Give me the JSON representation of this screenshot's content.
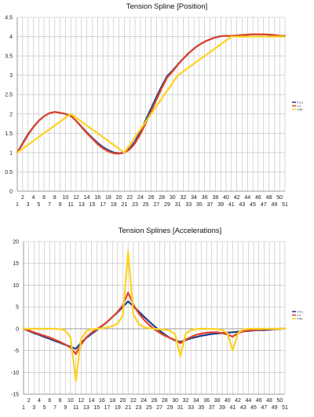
{
  "chart_data": [
    {
      "type": "line",
      "title": "Tension Spline [Position]",
      "xlabel": "",
      "ylabel": "",
      "x": [
        1,
        2,
        3,
        4,
        5,
        6,
        7,
        8,
        9,
        10,
        11,
        12,
        13,
        14,
        15,
        16,
        17,
        18,
        19,
        20,
        21,
        22,
        23,
        24,
        25,
        26,
        27,
        28,
        29,
        30,
        31,
        32,
        33,
        34,
        35,
        36,
        37,
        38,
        39,
        40,
        41,
        42,
        43,
        44,
        45,
        46,
        47,
        48,
        49,
        50,
        51
      ],
      "xlim": [
        1,
        51
      ],
      "ylim": [
        0,
        4.5
      ],
      "yticks": [
        "0",
        "0.5",
        "1",
        "1.5",
        "2",
        "2.5",
        "3",
        "3.5",
        "4",
        "4.5"
      ],
      "xticks_top": [
        "2",
        "4",
        "6",
        "8",
        "10",
        "12",
        "14",
        "16",
        "18",
        "20",
        "22",
        "24",
        "26",
        "28",
        "30",
        "32",
        "34",
        "36",
        "38",
        "40",
        "42",
        "44",
        "46",
        "48",
        "50"
      ],
      "xticks_bottom": [
        "1",
        "3",
        "5",
        "7",
        "9",
        "11",
        "13",
        "15",
        "17",
        "19",
        "21",
        "23",
        "25",
        "27",
        "29",
        "31",
        "33",
        "35",
        "37",
        "39",
        "41",
        "43",
        "45",
        "47",
        "49",
        "51"
      ],
      "grid": true,
      "legend_position": "right",
      "series": [
        {
          "name": "t=0.1",
          "color": "#1f3f8f",
          "values": [
            1.0,
            1.24,
            1.47,
            1.66,
            1.82,
            1.94,
            2.02,
            2.05,
            2.03,
            2.0,
            1.95,
            1.82,
            1.67,
            1.52,
            1.38,
            1.25,
            1.14,
            1.06,
            1.0,
            0.98,
            1.0,
            1.11,
            1.29,
            1.55,
            1.84,
            2.14,
            2.44,
            2.72,
            2.98,
            3.12,
            3.28,
            3.43,
            3.57,
            3.69,
            3.79,
            3.87,
            3.93,
            3.98,
            4.01,
            4.02,
            4.02,
            4.03,
            4.04,
            4.05,
            4.06,
            4.06,
            4.06,
            4.05,
            4.04,
            4.02,
            4.02
          ]
        },
        {
          "name": "t=1",
          "color": "#e0452a",
          "values": [
            1.0,
            1.22,
            1.45,
            1.66,
            1.82,
            1.94,
            2.02,
            2.05,
            2.03,
            2.0,
            1.95,
            1.82,
            1.66,
            1.5,
            1.36,
            1.22,
            1.11,
            1.03,
            0.98,
            0.97,
            1.0,
            1.08,
            1.24,
            1.48,
            1.76,
            2.06,
            2.37,
            2.67,
            2.94,
            3.1,
            3.27,
            3.43,
            3.57,
            3.69,
            3.79,
            3.87,
            3.93,
            3.98,
            4.01,
            4.02,
            4.02,
            4.03,
            4.04,
            4.05,
            4.06,
            4.06,
            4.06,
            4.05,
            4.04,
            4.02,
            4.02
          ]
        },
        {
          "name": "t=50",
          "color": "#ffd21f",
          "values": [
            1.0,
            1.1,
            1.2,
            1.3,
            1.4,
            1.5,
            1.6,
            1.7,
            1.8,
            1.9,
            2.0,
            1.9,
            1.8,
            1.7,
            1.6,
            1.5,
            1.4,
            1.3,
            1.2,
            1.1,
            1.0,
            1.2,
            1.4,
            1.6,
            1.8,
            2.0,
            2.2,
            2.4,
            2.6,
            2.8,
            3.0,
            3.1,
            3.2,
            3.3,
            3.4,
            3.5,
            3.6,
            3.7,
            3.8,
            3.9,
            4.0,
            4.0,
            4.0,
            4.0,
            4.0,
            4.0,
            4.0,
            4.0,
            4.0,
            4.0,
            4.0
          ]
        }
      ]
    },
    {
      "type": "line",
      "title": "Tension Splines [Accelerations]",
      "xlabel": "",
      "ylabel": "",
      "x": [
        1,
        2,
        3,
        4,
        5,
        6,
        7,
        8,
        9,
        10,
        11,
        12,
        13,
        14,
        15,
        16,
        17,
        18,
        19,
        20,
        21,
        22,
        23,
        24,
        25,
        26,
        27,
        28,
        29,
        30,
        31,
        32,
        33,
        34,
        35,
        36,
        37,
        38,
        39,
        40,
        41,
        42,
        43,
        44,
        45,
        46,
        47,
        48,
        49,
        50,
        51
      ],
      "xlim": [
        1,
        51
      ],
      "ylim": [
        -15,
        20
      ],
      "yticks": [
        "-15",
        "-10",
        "-5",
        "0",
        "5",
        "10",
        "15",
        "20"
      ],
      "xticks_top": [
        "2",
        "4",
        "6",
        "8",
        "10",
        "12",
        "14",
        "16",
        "18",
        "20",
        "22",
        "24",
        "26",
        "28",
        "30",
        "32",
        "34",
        "36",
        "38",
        "40",
        "42",
        "44",
        "46",
        "48",
        "50"
      ],
      "xticks_bottom": [
        "1",
        "3",
        "5",
        "7",
        "9",
        "11",
        "13",
        "15",
        "17",
        "19",
        "21",
        "23",
        "25",
        "27",
        "29",
        "31",
        "33",
        "35",
        "37",
        "39",
        "41",
        "43",
        "45",
        "47",
        "49",
        "51"
      ],
      "grid": true,
      "legend_position": "right",
      "series": [
        {
          "name": "t=0.1",
          "color": "#1f3f8f",
          "values": [
            0,
            -0.5,
            -1.0,
            -1.4,
            -1.9,
            -2.3,
            -2.8,
            -3.2,
            -3.7,
            -4.1,
            -4.6,
            -3.2,
            -2.1,
            -1.2,
            -0.3,
            0.6,
            1.6,
            2.7,
            3.8,
            5.0,
            6.3,
            5.1,
            4.0,
            2.8,
            1.7,
            0.6,
            -0.4,
            -1.3,
            -2.1,
            -2.7,
            -3.0,
            -2.6,
            -2.2,
            -1.9,
            -1.6,
            -1.4,
            -1.2,
            -1.1,
            -1.0,
            -0.9,
            -0.8,
            -0.7,
            -0.6,
            -0.5,
            -0.4,
            -0.3,
            -0.3,
            -0.2,
            -0.1,
            -0.05,
            0
          ]
        },
        {
          "name": "t=1",
          "color": "#e0452a",
          "values": [
            0,
            -0.4,
            -0.8,
            -1.2,
            -1.6,
            -2.0,
            -2.5,
            -3.0,
            -3.6,
            -4.3,
            -5.8,
            -3.6,
            -2.0,
            -0.9,
            -0.1,
            0.7,
            1.6,
            2.7,
            3.9,
            5.4,
            8.3,
            5.5,
            3.6,
            2.1,
            0.9,
            -0.1,
            -0.9,
            -1.6,
            -2.1,
            -2.6,
            -3.3,
            -2.5,
            -1.9,
            -1.4,
            -1.1,
            -0.9,
            -0.8,
            -0.8,
            -1.0,
            -1.3,
            -1.8,
            -1.0,
            -0.6,
            -0.4,
            -0.3,
            -0.2,
            -0.1,
            -0.1,
            -0.05,
            0,
            0
          ]
        },
        {
          "name": "t=50",
          "color": "#ffd21f",
          "values": [
            0,
            0,
            0,
            0,
            0,
            0,
            0,
            -0.1,
            -0.4,
            -2.0,
            -12.0,
            -2.3,
            -0.5,
            -0.1,
            0,
            0.1,
            0.3,
            0.6,
            1.2,
            3.0,
            17.8,
            3.3,
            1.1,
            0.4,
            0.1,
            0,
            -0.1,
            -0.2,
            -0.4,
            -1.3,
            -6.3,
            -1.2,
            -0.3,
            -0.1,
            0,
            0,
            0,
            -0.1,
            -0.3,
            -1.0,
            -5.0,
            -1.0,
            -0.2,
            0,
            0,
            0,
            0,
            0,
            0,
            0,
            0
          ]
        }
      ]
    }
  ]
}
